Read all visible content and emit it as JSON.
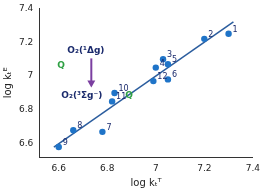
{
  "chart_data": {
    "type": "scatter",
    "x_label": "log kₜᵀ",
    "y_label": "log kₜᴱ",
    "xlim": [
      6.52,
      7.4
    ],
    "xticks": [
      6.6,
      6.8,
      7.0,
      7.2,
      7.4
    ],
    "ylim": [
      6.52,
      7.4
    ],
    "yticks": [
      6.6,
      6.8,
      7.0,
      7.2,
      7.4
    ],
    "grid": false,
    "series": [
      {
        "type": "scatter",
        "color": "#1f74c8",
        "marker": "circle",
        "labels": [
          "1",
          "2",
          "3",
          "4",
          "5",
          "6",
          "7",
          "8",
          "9",
          "10",
          "11",
          "12"
        ],
        "x": [
          7.3,
          7.2,
          7.03,
          7.0,
          7.05,
          7.05,
          6.78,
          6.66,
          6.6,
          6.83,
          6.82,
          6.99
        ],
        "values": [
          7.25,
          7.22,
          7.1,
          7.05,
          7.07,
          6.98,
          6.67,
          6.68,
          6.58,
          6.9,
          6.85,
          6.97
        ]
      },
      {
        "type": "line",
        "color": "#2b5d9e",
        "line_style": "solid",
        "x": [
          6.58,
          7.32
        ],
        "values": [
          6.58,
          7.32
        ]
      }
    ],
    "annotations": [
      {
        "text": "O₂(¹Δg)",
        "color": "#1a2a6c"
      },
      {
        "text": "Q",
        "color": "#2ea043"
      },
      {
        "text": "O₂(³Σg⁻)",
        "color": "#1a2a6c"
      },
      {
        "text": "Q",
        "color": "#2ea043"
      }
    ]
  }
}
